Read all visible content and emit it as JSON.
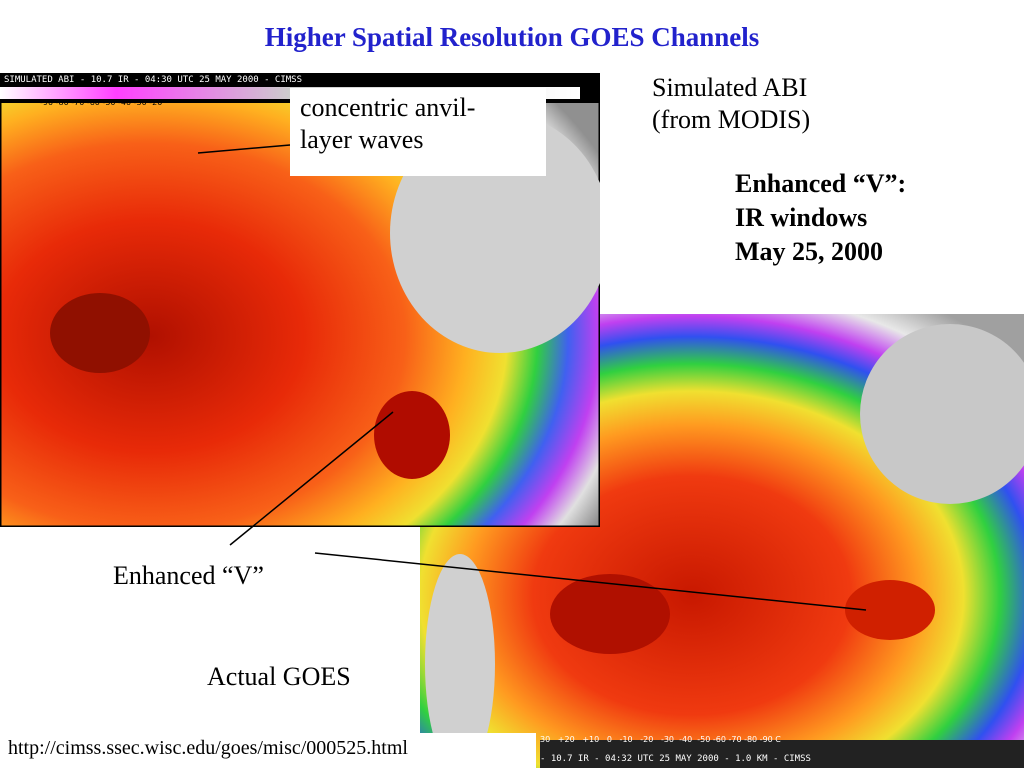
{
  "title": "Higher Spatial Resolution GOES Channels",
  "top_image": {
    "header": "SIMULATED ABI - 10.7 IR - 04:30 UTC 25 MAY 2000 - CIMSS",
    "scale": "-90 -80 -70 -60 -50 -40 -30 -20"
  },
  "bottom_image": {
    "header": "- 10.7 IR - 04:32 UTC 25 MAY 2000 - 1.0 KM - CIMSS",
    "scale": "30   +20   +10   0   -10   -20   -30  -40  -50 -60 -70 -80 -90 C"
  },
  "callout": {
    "lines": [
      "concentric anvil-",
      "layer waves"
    ]
  },
  "simulated": {
    "lines": [
      "Simulated ABI",
      "(from MODIS)"
    ]
  },
  "enhanced_note": {
    "lines": [
      "Enhanced “V”:",
      "IR windows",
      "May 25, 2000"
    ]
  },
  "enhanced_v": "Enhanced “V”",
  "actual": "Actual GOES",
  "url": "http://cimss.ssec.wisc.edu/goes/misc/000525.html"
}
